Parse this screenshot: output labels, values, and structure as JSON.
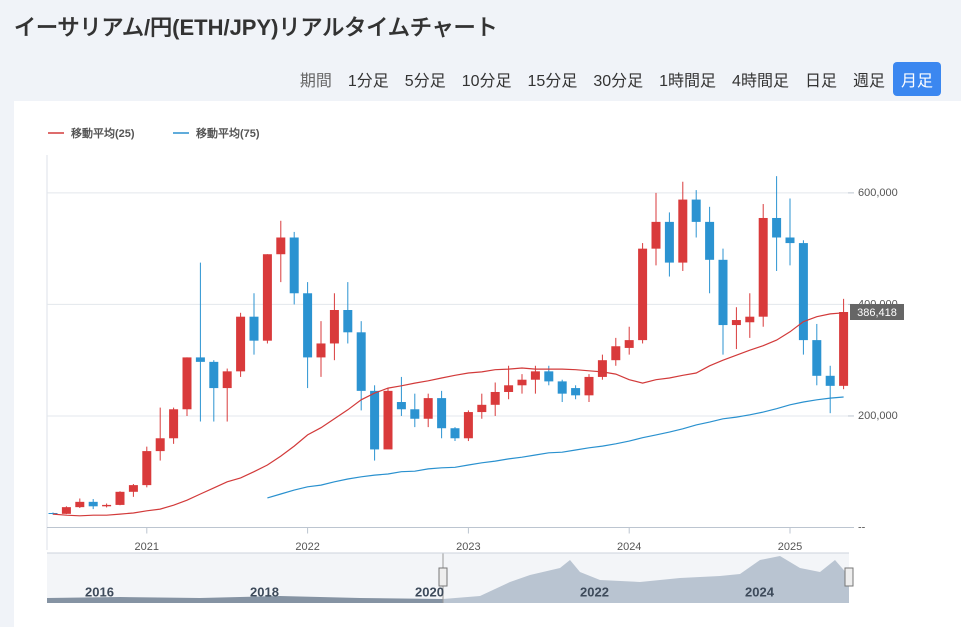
{
  "header": {
    "title": "イーサリアム/円(ETH/JPY)リアルタイムチャート"
  },
  "period": {
    "label": "期間",
    "options": [
      "1分足",
      "5分足",
      "10分足",
      "15分足",
      "30分足",
      "1時間足",
      "4時間足",
      "日足",
      "週足",
      "月足"
    ],
    "active": 9
  },
  "chart_data": {
    "type": "candlestick",
    "categories": [
      null,
      null,
      null,
      null,
      null,
      null,
      null,
      "2021",
      null,
      null,
      null,
      null,
      null,
      null,
      null,
      null,
      null,
      null,
      null,
      "2022",
      null,
      null,
      null,
      null,
      null,
      null,
      null,
      null,
      null,
      null,
      null,
      "2023",
      null,
      null,
      null,
      null,
      null,
      null,
      null,
      null,
      null,
      null,
      null,
      "2024",
      null,
      null,
      null,
      null,
      null,
      null,
      null,
      null,
      null,
      null,
      null,
      "2025",
      null,
      null,
      null,
      null
    ],
    "open": [
      26000,
      24500,
      36500,
      46000,
      38000,
      40500,
      64000,
      76000,
      137000,
      160000,
      212000,
      305000,
      297000,
      250000,
      280000,
      378000,
      335000,
      490000,
      520000,
      420000,
      305000,
      330000,
      390000,
      350000,
      245000,
      140000,
      225000,
      212000,
      195000,
      232000,
      178000,
      160000,
      207000,
      220000,
      243000,
      255000,
      265000,
      280000,
      262000,
      250000,
      237000,
      270000,
      300000,
      322000,
      336000,
      500000,
      548000,
      475000,
      588000,
      548000,
      480000,
      363000,
      368000,
      378000,
      555000,
      520000,
      510000,
      336000,
      272000,
      254000
    ],
    "high": [
      27000,
      38000,
      52000,
      51000,
      43000,
      65000,
      78000,
      145000,
      215000,
      215000,
      305000,
      475000,
      300000,
      285000,
      385000,
      420000,
      490000,
      550000,
      530000,
      440000,
      370000,
      420000,
      440000,
      370000,
      255000,
      250000,
      270000,
      240000,
      240000,
      245000,
      180000,
      210000,
      240000,
      260000,
      290000,
      275000,
      290000,
      290000,
      265000,
      255000,
      275000,
      310000,
      340000,
      360000,
      510000,
      600000,
      565000,
      620000,
      605000,
      575000,
      500000,
      395000,
      420000,
      580000,
      630000,
      590000,
      515000,
      365000,
      290000,
      410000
    ],
    "low": [
      23000,
      24000,
      35000,
      33000,
      36000,
      40000,
      55000,
      72000,
      120000,
      150000,
      200000,
      190000,
      190000,
      190000,
      270000,
      310000,
      330000,
      440000,
      400000,
      250000,
      270000,
      300000,
      330000,
      210000,
      120000,
      145000,
      200000,
      180000,
      180000,
      160000,
      155000,
      155000,
      195000,
      200000,
      230000,
      240000,
      240000,
      255000,
      225000,
      230000,
      225000,
      265000,
      290000,
      310000,
      330000,
      470000,
      450000,
      460000,
      520000,
      420000,
      310000,
      320000,
      340000,
      360000,
      460000,
      470000,
      310000,
      255000,
      205000,
      248000
    ],
    "close": [
      24500,
      36500,
      46000,
      38000,
      40500,
      64000,
      76000,
      137000,
      160000,
      212000,
      305000,
      297000,
      250000,
      280000,
      378000,
      335000,
      490000,
      520000,
      420000,
      305000,
      330000,
      390000,
      350000,
      245000,
      140000,
      245000,
      212000,
      195000,
      232000,
      178000,
      160000,
      207000,
      220000,
      243000,
      255000,
      265000,
      280000,
      262000,
      240000,
      237000,
      270000,
      300000,
      325000,
      336000,
      500000,
      548000,
      475000,
      588000,
      548000,
      480000,
      363000,
      372000,
      378000,
      555000,
      520000,
      510000,
      336000,
      272000,
      254000,
      386418
    ],
    "up_color": "#d93a3b",
    "down_color": "#2b93d1",
    "series": [
      {
        "name": "移動平均(25)",
        "color": "#d23a3a",
        "values": [
          24000,
          22000,
          21000,
          22000,
          22000,
          24000,
          26000,
          30000,
          33000,
          40000,
          49000,
          60000,
          71000,
          82000,
          89000,
          100000,
          112000,
          128000,
          146000,
          166000,
          179000,
          195000,
          211000,
          229000,
          241000,
          250000,
          254000,
          259000,
          263000,
          268000,
          273000,
          277000,
          279000,
          283000,
          284000,
          286000,
          284000,
          284000,
          284000,
          283000,
          281000,
          279000,
          275000,
          265000,
          259000,
          265000,
          268000,
          273000,
          277000,
          290000,
          300000,
          309000,
          318000,
          326000,
          336000,
          351000,
          369000,
          378000,
          383000,
          385000
        ]
      },
      {
        "name": "移動平均(75)",
        "color": "#2a91cf",
        "values": [
          null,
          null,
          null,
          null,
          null,
          null,
          null,
          null,
          null,
          null,
          null,
          null,
          null,
          null,
          null,
          null,
          53000,
          60000,
          67000,
          73000,
          76000,
          82000,
          87000,
          91000,
          94000,
          96000,
          100000,
          101000,
          105000,
          107000,
          108000,
          112000,
          116000,
          119000,
          123000,
          126000,
          130000,
          134000,
          135000,
          139000,
          143000,
          146000,
          150000,
          155000,
          161000,
          166000,
          171000,
          177000,
          184000,
          189000,
          195000,
          198000,
          202000,
          207000,
          213000,
          220000,
          225000,
          229000,
          232000,
          234000
        ]
      }
    ],
    "ylim": [
      0,
      650000
    ],
    "yticks": [
      {
        "value": 0,
        "label": "--"
      },
      {
        "value": 200000,
        "label": "200,000"
      },
      {
        "value": 400000,
        "label": "400,000"
      },
      {
        "value": 600000,
        "label": "600,000"
      }
    ],
    "last_price": {
      "value": 386418,
      "label": "386,418"
    },
    "grid": true,
    "legend": "top-left"
  },
  "navigator": {
    "labels": [
      "2016",
      "2018",
      "2020",
      "2022",
      "2024"
    ]
  }
}
